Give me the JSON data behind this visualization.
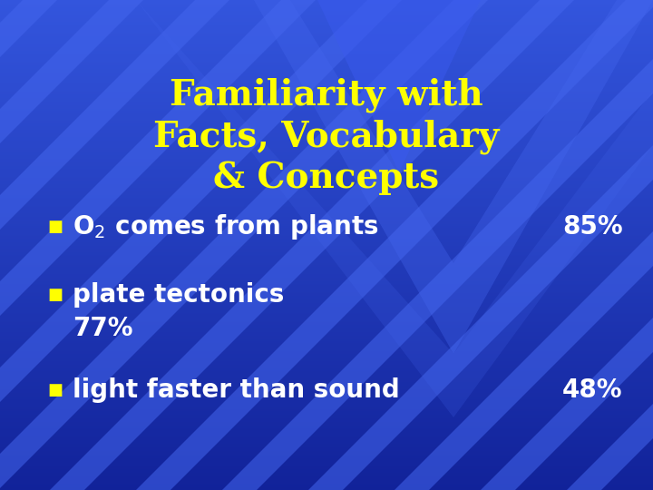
{
  "title_lines": [
    "Familiarity with",
    "Facts, Vocabulary",
    "& Concepts"
  ],
  "title_color": "#FFFF00",
  "title_fontsize": 28,
  "bg_color": "#2244cc",
  "bg_gradient_top": "#3355dd",
  "bg_gradient_bottom": "#1133aa",
  "bullet_color": "#FFFF00",
  "stripe_color_light": "#4466ee",
  "stripe_alpha": 0.55,
  "text_color": "#ffffff",
  "bullet_fontsize": 13,
  "body_fontsize": 20
}
